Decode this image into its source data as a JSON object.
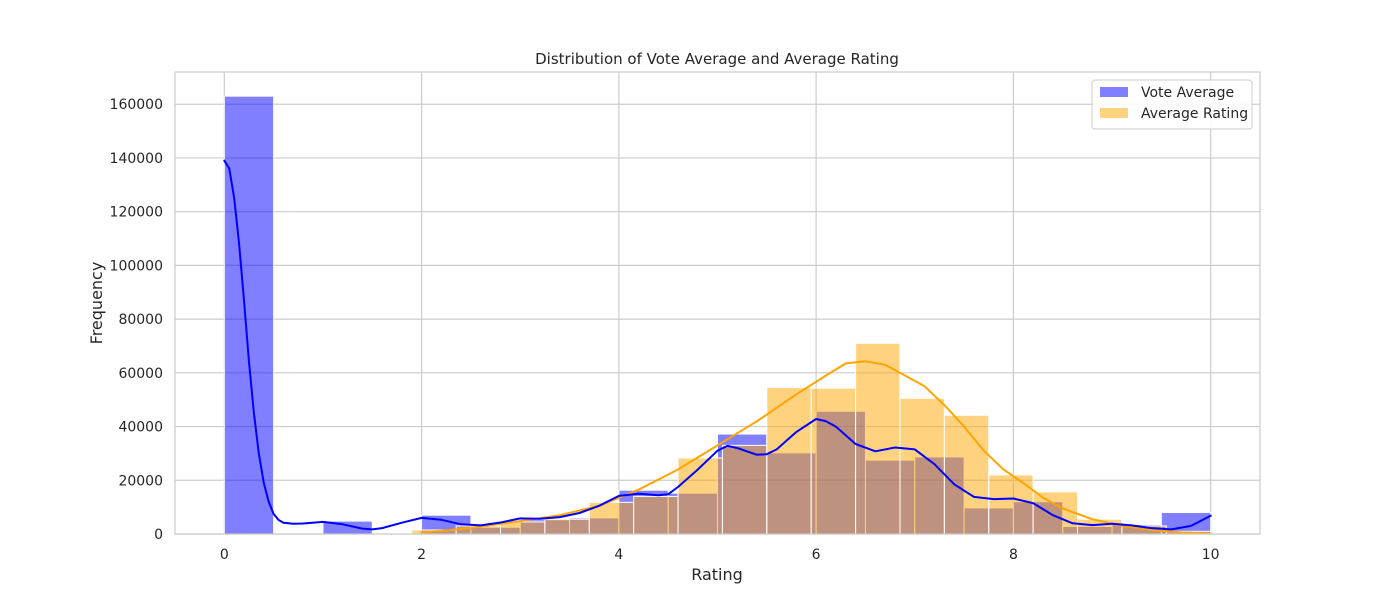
{
  "chart_data": {
    "type": "bar",
    "title": "Distribution of Vote Average and Average Rating",
    "xlabel": "Rating",
    "ylabel": "Frequency",
    "xlim": [
      -0.5,
      10.5
    ],
    "ylim": [
      0,
      172000
    ],
    "xticks": [
      0,
      2,
      4,
      6,
      8,
      10
    ],
    "yticks": [
      0,
      20000,
      40000,
      60000,
      80000,
      100000,
      120000,
      140000,
      160000
    ],
    "grid": true,
    "legend_position": "top-right",
    "series": [
      {
        "name": "Vote Average",
        "color": "#0000ff",
        "bar_alpha": 0.5,
        "bins": [
          [
            0.0,
            0.5,
            163000
          ],
          [
            0.5,
            1.0,
            0
          ],
          [
            1.0,
            1.5,
            4800
          ],
          [
            1.5,
            2.0,
            200
          ],
          [
            2.0,
            2.5,
            7000
          ],
          [
            2.5,
            3.0,
            2500
          ],
          [
            3.0,
            3.5,
            5300
          ],
          [
            3.5,
            4.0,
            6000
          ],
          [
            4.0,
            4.5,
            16300
          ],
          [
            4.5,
            5.0,
            15200
          ],
          [
            5.0,
            5.5,
            37200
          ],
          [
            5.5,
            6.0,
            30200
          ],
          [
            6.0,
            6.5,
            45700
          ],
          [
            6.5,
            7.0,
            27500
          ],
          [
            7.0,
            7.5,
            28700
          ],
          [
            7.5,
            8.0,
            9700
          ],
          [
            8.0,
            8.5,
            12000
          ],
          [
            8.5,
            9.0,
            2800
          ],
          [
            9.0,
            9.5,
            3500
          ],
          [
            9.5,
            10.0,
            8000
          ]
        ],
        "kde": [
          [
            0.0,
            139000
          ],
          [
            0.05,
            136000
          ],
          [
            0.1,
            125000
          ],
          [
            0.15,
            108000
          ],
          [
            0.2,
            87000
          ],
          [
            0.25,
            64000
          ],
          [
            0.3,
            45000
          ],
          [
            0.35,
            30000
          ],
          [
            0.4,
            19000
          ],
          [
            0.45,
            12000
          ],
          [
            0.5,
            7500
          ],
          [
            0.55,
            5200
          ],
          [
            0.6,
            4200
          ],
          [
            0.7,
            3800
          ],
          [
            0.8,
            3900
          ],
          [
            1.0,
            4500
          ],
          [
            1.2,
            3600
          ],
          [
            1.4,
            2000
          ],
          [
            1.5,
            1700
          ],
          [
            1.6,
            2200
          ],
          [
            1.8,
            4200
          ],
          [
            2.0,
            6000
          ],
          [
            2.2,
            5300
          ],
          [
            2.4,
            3600
          ],
          [
            2.6,
            3200
          ],
          [
            2.8,
            4300
          ],
          [
            3.0,
            5800
          ],
          [
            3.2,
            5700
          ],
          [
            3.4,
            6300
          ],
          [
            3.6,
            7800
          ],
          [
            3.8,
            10500
          ],
          [
            4.0,
            14200
          ],
          [
            4.2,
            15000
          ],
          [
            4.4,
            14400
          ],
          [
            4.5,
            14800
          ],
          [
            4.6,
            17500
          ],
          [
            4.8,
            24000
          ],
          [
            5.0,
            31000
          ],
          [
            5.1,
            32800
          ],
          [
            5.2,
            32000
          ],
          [
            5.4,
            29500
          ],
          [
            5.5,
            29700
          ],
          [
            5.6,
            31500
          ],
          [
            5.8,
            38000
          ],
          [
            6.0,
            42800
          ],
          [
            6.1,
            42000
          ],
          [
            6.2,
            40000
          ],
          [
            6.4,
            33500
          ],
          [
            6.6,
            30800
          ],
          [
            6.8,
            32200
          ],
          [
            7.0,
            31500
          ],
          [
            7.2,
            26000
          ],
          [
            7.4,
            18500
          ],
          [
            7.6,
            13800
          ],
          [
            7.8,
            13000
          ],
          [
            8.0,
            13200
          ],
          [
            8.2,
            11500
          ],
          [
            8.4,
            7000
          ],
          [
            8.6,
            4000
          ],
          [
            8.8,
            3300
          ],
          [
            9.0,
            3800
          ],
          [
            9.2,
            3200
          ],
          [
            9.4,
            2200
          ],
          [
            9.6,
            1700
          ],
          [
            9.8,
            3000
          ],
          [
            10.0,
            6800
          ]
        ]
      },
      {
        "name": "Average Rating",
        "color": "#ffa500",
        "bar_alpha": 0.5,
        "bins": [
          [
            1.9,
            2.35,
            1500
          ],
          [
            2.35,
            2.8,
            3000
          ],
          [
            2.8,
            3.25,
            4500
          ],
          [
            3.25,
            3.7,
            5500
          ],
          [
            3.7,
            4.15,
            11800
          ],
          [
            4.15,
            4.6,
            14000
          ],
          [
            4.6,
            5.05,
            28300
          ],
          [
            5.05,
            5.5,
            33000
          ],
          [
            5.5,
            5.95,
            54500
          ],
          [
            5.95,
            6.4,
            54300
          ],
          [
            6.4,
            6.85,
            71000
          ],
          [
            6.85,
            7.3,
            50500
          ],
          [
            7.3,
            7.75,
            44200
          ],
          [
            7.75,
            8.2,
            22000
          ],
          [
            8.2,
            8.65,
            15700
          ],
          [
            8.65,
            9.1,
            5500
          ],
          [
            9.1,
            9.55,
            3000
          ],
          [
            9.55,
            10.0,
            1000
          ]
        ],
        "kde": [
          [
            2.0,
            600
          ],
          [
            2.3,
            1500
          ],
          [
            2.6,
            2800
          ],
          [
            3.0,
            4800
          ],
          [
            3.4,
            7000
          ],
          [
            3.8,
            10500
          ],
          [
            4.2,
            16500
          ],
          [
            4.6,
            24000
          ],
          [
            5.0,
            33000
          ],
          [
            5.4,
            42000
          ],
          [
            5.8,
            52000
          ],
          [
            6.1,
            59000
          ],
          [
            6.3,
            63500
          ],
          [
            6.5,
            64300
          ],
          [
            6.7,
            63000
          ],
          [
            6.9,
            59000
          ],
          [
            7.1,
            55000
          ],
          [
            7.3,
            48000
          ],
          [
            7.5,
            40000
          ],
          [
            7.7,
            31000
          ],
          [
            7.9,
            24000
          ],
          [
            8.1,
            19000
          ],
          [
            8.3,
            13500
          ],
          [
            8.5,
            9500
          ],
          [
            8.8,
            5500
          ],
          [
            9.1,
            3000
          ],
          [
            9.4,
            1500
          ],
          [
            9.7,
            600
          ],
          [
            10.0,
            200
          ]
        ]
      }
    ]
  }
}
